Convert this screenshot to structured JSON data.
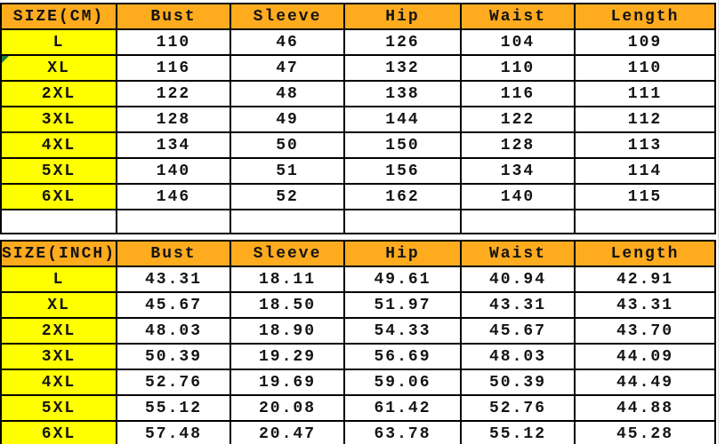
{
  "colors": {
    "header_bg": "#FFAB1E",
    "size_column_bg": "#FFFF00",
    "border": "#000000",
    "text": "#141414",
    "corner_marker_green": "#1E7A3C",
    "margin_gridline": "#c9c9c9"
  },
  "tables": [
    {
      "id": "cm",
      "header": [
        "SIZE(CM)",
        "Bust",
        "Sleeve",
        "Hip",
        "Waist",
        "Length"
      ],
      "rows": [
        {
          "size": "L",
          "values": [
            "110",
            "46",
            "126",
            "104",
            "109"
          ]
        },
        {
          "size": "XL",
          "values": [
            "116",
            "47",
            "132",
            "110",
            "110"
          ],
          "marker": true
        },
        {
          "size": "2XL",
          "values": [
            "122",
            "48",
            "138",
            "116",
            "111"
          ]
        },
        {
          "size": "3XL",
          "values": [
            "128",
            "49",
            "144",
            "122",
            "112"
          ]
        },
        {
          "size": "4XL",
          "values": [
            "134",
            "50",
            "150",
            "128",
            "113"
          ]
        },
        {
          "size": "5XL",
          "values": [
            "140",
            "51",
            "156",
            "134",
            "114"
          ]
        },
        {
          "size": "6XL",
          "values": [
            "146",
            "52",
            "162",
            "140",
            "115"
          ]
        }
      ]
    },
    {
      "id": "inch",
      "header": [
        "SIZE(INCH)",
        "Bust",
        "Sleeve",
        "Hip",
        "Waist",
        "Length"
      ],
      "rows": [
        {
          "size": "L",
          "values": [
            "43.31",
            "18.11",
            "49.61",
            "40.94",
            "42.91"
          ]
        },
        {
          "size": "XL",
          "values": [
            "45.67",
            "18.50",
            "51.97",
            "43.31",
            "43.31"
          ]
        },
        {
          "size": "2XL",
          "values": [
            "48.03",
            "18.90",
            "54.33",
            "45.67",
            "43.70"
          ]
        },
        {
          "size": "3XL",
          "values": [
            "50.39",
            "19.29",
            "56.69",
            "48.03",
            "44.09"
          ]
        },
        {
          "size": "4XL",
          "values": [
            "52.76",
            "19.69",
            "59.06",
            "50.39",
            "44.49"
          ]
        },
        {
          "size": "5XL",
          "values": [
            "55.12",
            "20.08",
            "61.42",
            "52.76",
            "44.88"
          ]
        },
        {
          "size": "6XL",
          "values": [
            "57.48",
            "20.47",
            "63.78",
            "55.12",
            "45.28"
          ]
        }
      ]
    }
  ]
}
